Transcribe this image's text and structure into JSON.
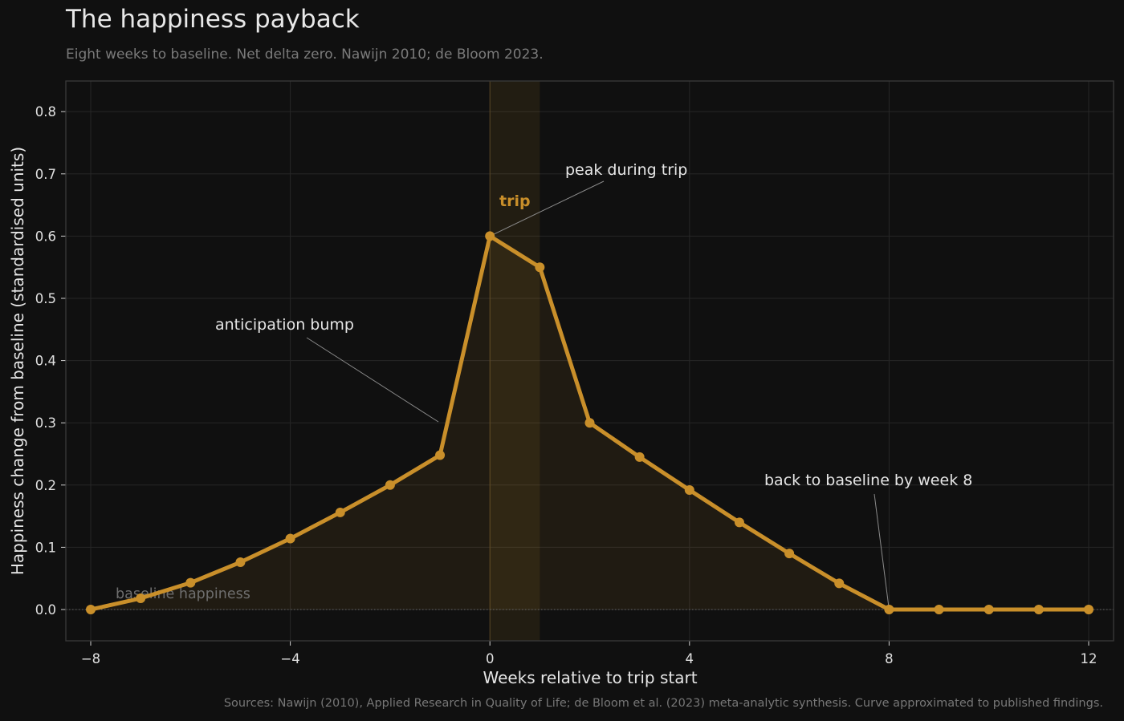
{
  "header": {
    "title": "The happiness payback",
    "subtitle": "Eight weeks to baseline. Net delta zero. Nawijn 2010; de Bloom 2023."
  },
  "footer": {
    "source": "Sources: Nawijn (2010), Applied Research in Quality of Life; de Bloom et al. (2023) meta-analytic synthesis. Curve approximated to published findings."
  },
  "chart_data": {
    "type": "line",
    "title": "The happiness payback",
    "subtitle": "Eight weeks to baseline. Net delta zero. Nawijn 2010; de Bloom 2023.",
    "xlabel": "Weeks relative to trip start",
    "ylabel": "Happiness change from baseline (standardised units)",
    "xlim": [
      -8.5,
      12.5
    ],
    "ylim": [
      -0.05,
      0.85
    ],
    "xticks": [
      -8,
      -4,
      0,
      4,
      8,
      12
    ],
    "xtick_labels": [
      "−8",
      "−4",
      "0",
      "4",
      "8",
      "12"
    ],
    "yticks": [
      0.0,
      0.1,
      0.2,
      0.3,
      0.4,
      0.5,
      0.6,
      0.7,
      0.8
    ],
    "ytick_labels": [
      "0.0",
      "0.1",
      "0.2",
      "0.3",
      "0.4",
      "0.5",
      "0.6",
      "0.7",
      "0.8"
    ],
    "grid": true,
    "series": [
      {
        "x": [
          -8,
          -7,
          -6,
          -5,
          -4,
          -3,
          -2,
          -1,
          0,
          1,
          2,
          3,
          4,
          5,
          6,
          7,
          8,
          9,
          10,
          11,
          12
        ],
        "y": [
          0.0,
          0.018,
          0.043,
          0.076,
          0.114,
          0.156,
          0.2,
          0.248,
          0.6,
          0.55,
          0.3,
          0.245,
          0.192,
          0.14,
          0.09,
          0.042,
          0.0,
          0.0,
          0.0,
          0.0,
          0.0
        ],
        "color": "#c98f2a"
      }
    ],
    "trip_band": {
      "from": 0,
      "to": 1,
      "label": "trip"
    },
    "baseline": {
      "y": 0,
      "label": "baseline happiness"
    },
    "annotations": [
      {
        "text": "peak during trip",
        "x": 0,
        "y": 0.6,
        "text_x": 1.5,
        "text_y": 0.7
      },
      {
        "text": "anticipation bump",
        "x": -1.05,
        "y": 0.3,
        "text_x": -5.5,
        "text_y": 0.45
      },
      {
        "text": "back to baseline by week 8",
        "x": 8,
        "y": 0.0,
        "text_x": 5.5,
        "text_y": 0.2
      }
    ],
    "colors": {
      "accent": "#c98f2a",
      "background": "#101010"
    }
  }
}
